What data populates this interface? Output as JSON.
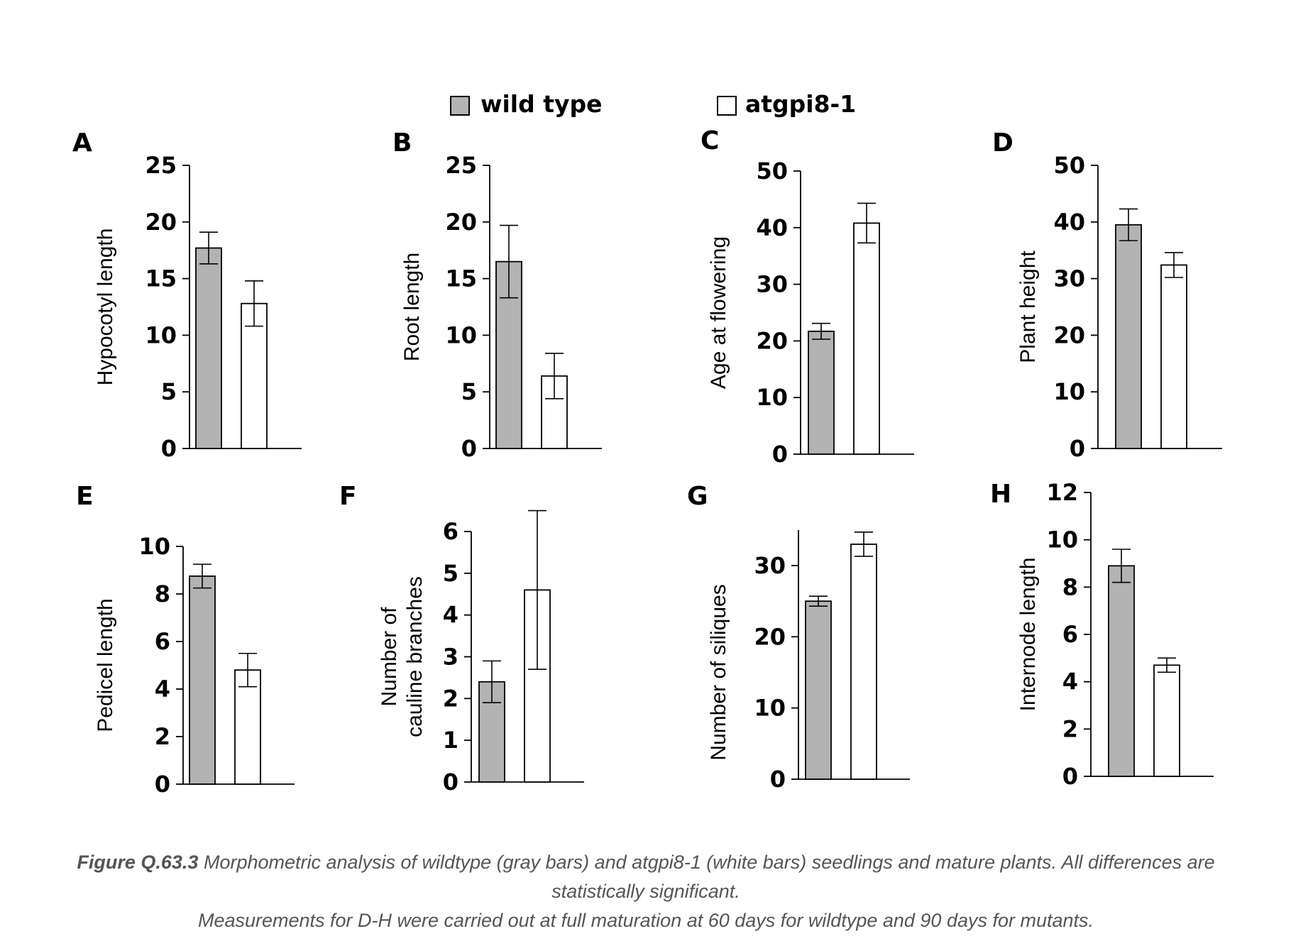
{
  "legend": [
    {
      "label": "wild type",
      "fill": "#b3b3b3"
    },
    {
      "label": "atgpi8-1",
      "fill": "#ffffff"
    }
  ],
  "caption": {
    "lead": "Figure Q.63.3",
    "text": " Morphometric analysis of wildtype (gray bars) and  atgpi8-1 (white bars) seedlings and mature plants. All differences are statistically significant.",
    "line2": "Measurements for D-H were carried out at full maturation at 60 days for wildtype and 90 days for mutants."
  },
  "chart_data": [
    {
      "panel": "A",
      "type": "bar",
      "ylabel": "Hypocotyl length",
      "ylim": [
        0,
        25
      ],
      "ticks": [
        0,
        5,
        10,
        15,
        20,
        25
      ],
      "series": [
        {
          "name": "wild type",
          "value": 17.7,
          "err": 1.4
        },
        {
          "name": "atgpi8-1",
          "value": 12.8,
          "err": 2.0
        }
      ]
    },
    {
      "panel": "B",
      "type": "bar",
      "ylabel": "Root length",
      "ylim": [
        0,
        25
      ],
      "ticks": [
        0,
        5,
        10,
        15,
        20,
        25
      ],
      "series": [
        {
          "name": "wild type",
          "value": 16.5,
          "err": 3.2
        },
        {
          "name": "atgpi8-1",
          "value": 6.4,
          "err": 2.0
        }
      ]
    },
    {
      "panel": "C",
      "type": "bar",
      "ylabel": "Age at flowering",
      "ylim": [
        0,
        50
      ],
      "ticks": [
        0,
        10,
        20,
        30,
        40,
        50
      ],
      "series": [
        {
          "name": "wild type",
          "value": 21.7,
          "err": 1.4
        },
        {
          "name": "atgpi8-1",
          "value": 40.8,
          "err": 3.5
        }
      ]
    },
    {
      "panel": "D",
      "type": "bar",
      "ylabel": "Plant height",
      "ylim": [
        0,
        50
      ],
      "ticks": [
        0,
        10,
        20,
        30,
        40,
        50
      ],
      "series": [
        {
          "name": "wild type",
          "value": 39.5,
          "err": 2.8
        },
        {
          "name": "atgpi8-1",
          "value": 32.4,
          "err": 2.2
        }
      ]
    },
    {
      "panel": "E",
      "type": "bar",
      "ylabel": "Pedicel length",
      "ylim": [
        0,
        10
      ],
      "ticks": [
        0,
        2,
        4,
        6,
        8,
        10
      ],
      "series": [
        {
          "name": "wild type",
          "value": 8.75,
          "err": 0.5
        },
        {
          "name": "atgpi8-1",
          "value": 4.8,
          "err": 0.7
        }
      ]
    },
    {
      "panel": "F",
      "type": "bar",
      "ylabel": "Number of\ncauline branches",
      "ylim": [
        0,
        6
      ],
      "ticks": [
        0,
        1,
        2,
        3,
        4,
        5,
        6
      ],
      "series": [
        {
          "name": "wild type",
          "value": 2.4,
          "err": 0.5
        },
        {
          "name": "atgpi8-1",
          "value": 4.6,
          "err": 1.9
        }
      ]
    },
    {
      "panel": "G",
      "type": "bar",
      "ylabel": "Number of siliques",
      "ylim": [
        0,
        35
      ],
      "ticks": [
        0,
        10,
        20,
        30
      ],
      "series": [
        {
          "name": "wild type",
          "value": 25.0,
          "err": 0.7
        },
        {
          "name": "atgpi8-1",
          "value": 33.0,
          "err": 1.7
        }
      ]
    },
    {
      "panel": "H",
      "type": "bar",
      "ylabel": "Internode length",
      "ylim": [
        0,
        12
      ],
      "ticks": [
        0,
        2,
        4,
        6,
        8,
        10,
        12
      ],
      "series": [
        {
          "name": "wild type",
          "value": 8.9,
          "err": 0.7
        },
        {
          "name": "atgpi8-1",
          "value": 4.7,
          "err": 0.3
        }
      ]
    }
  ]
}
